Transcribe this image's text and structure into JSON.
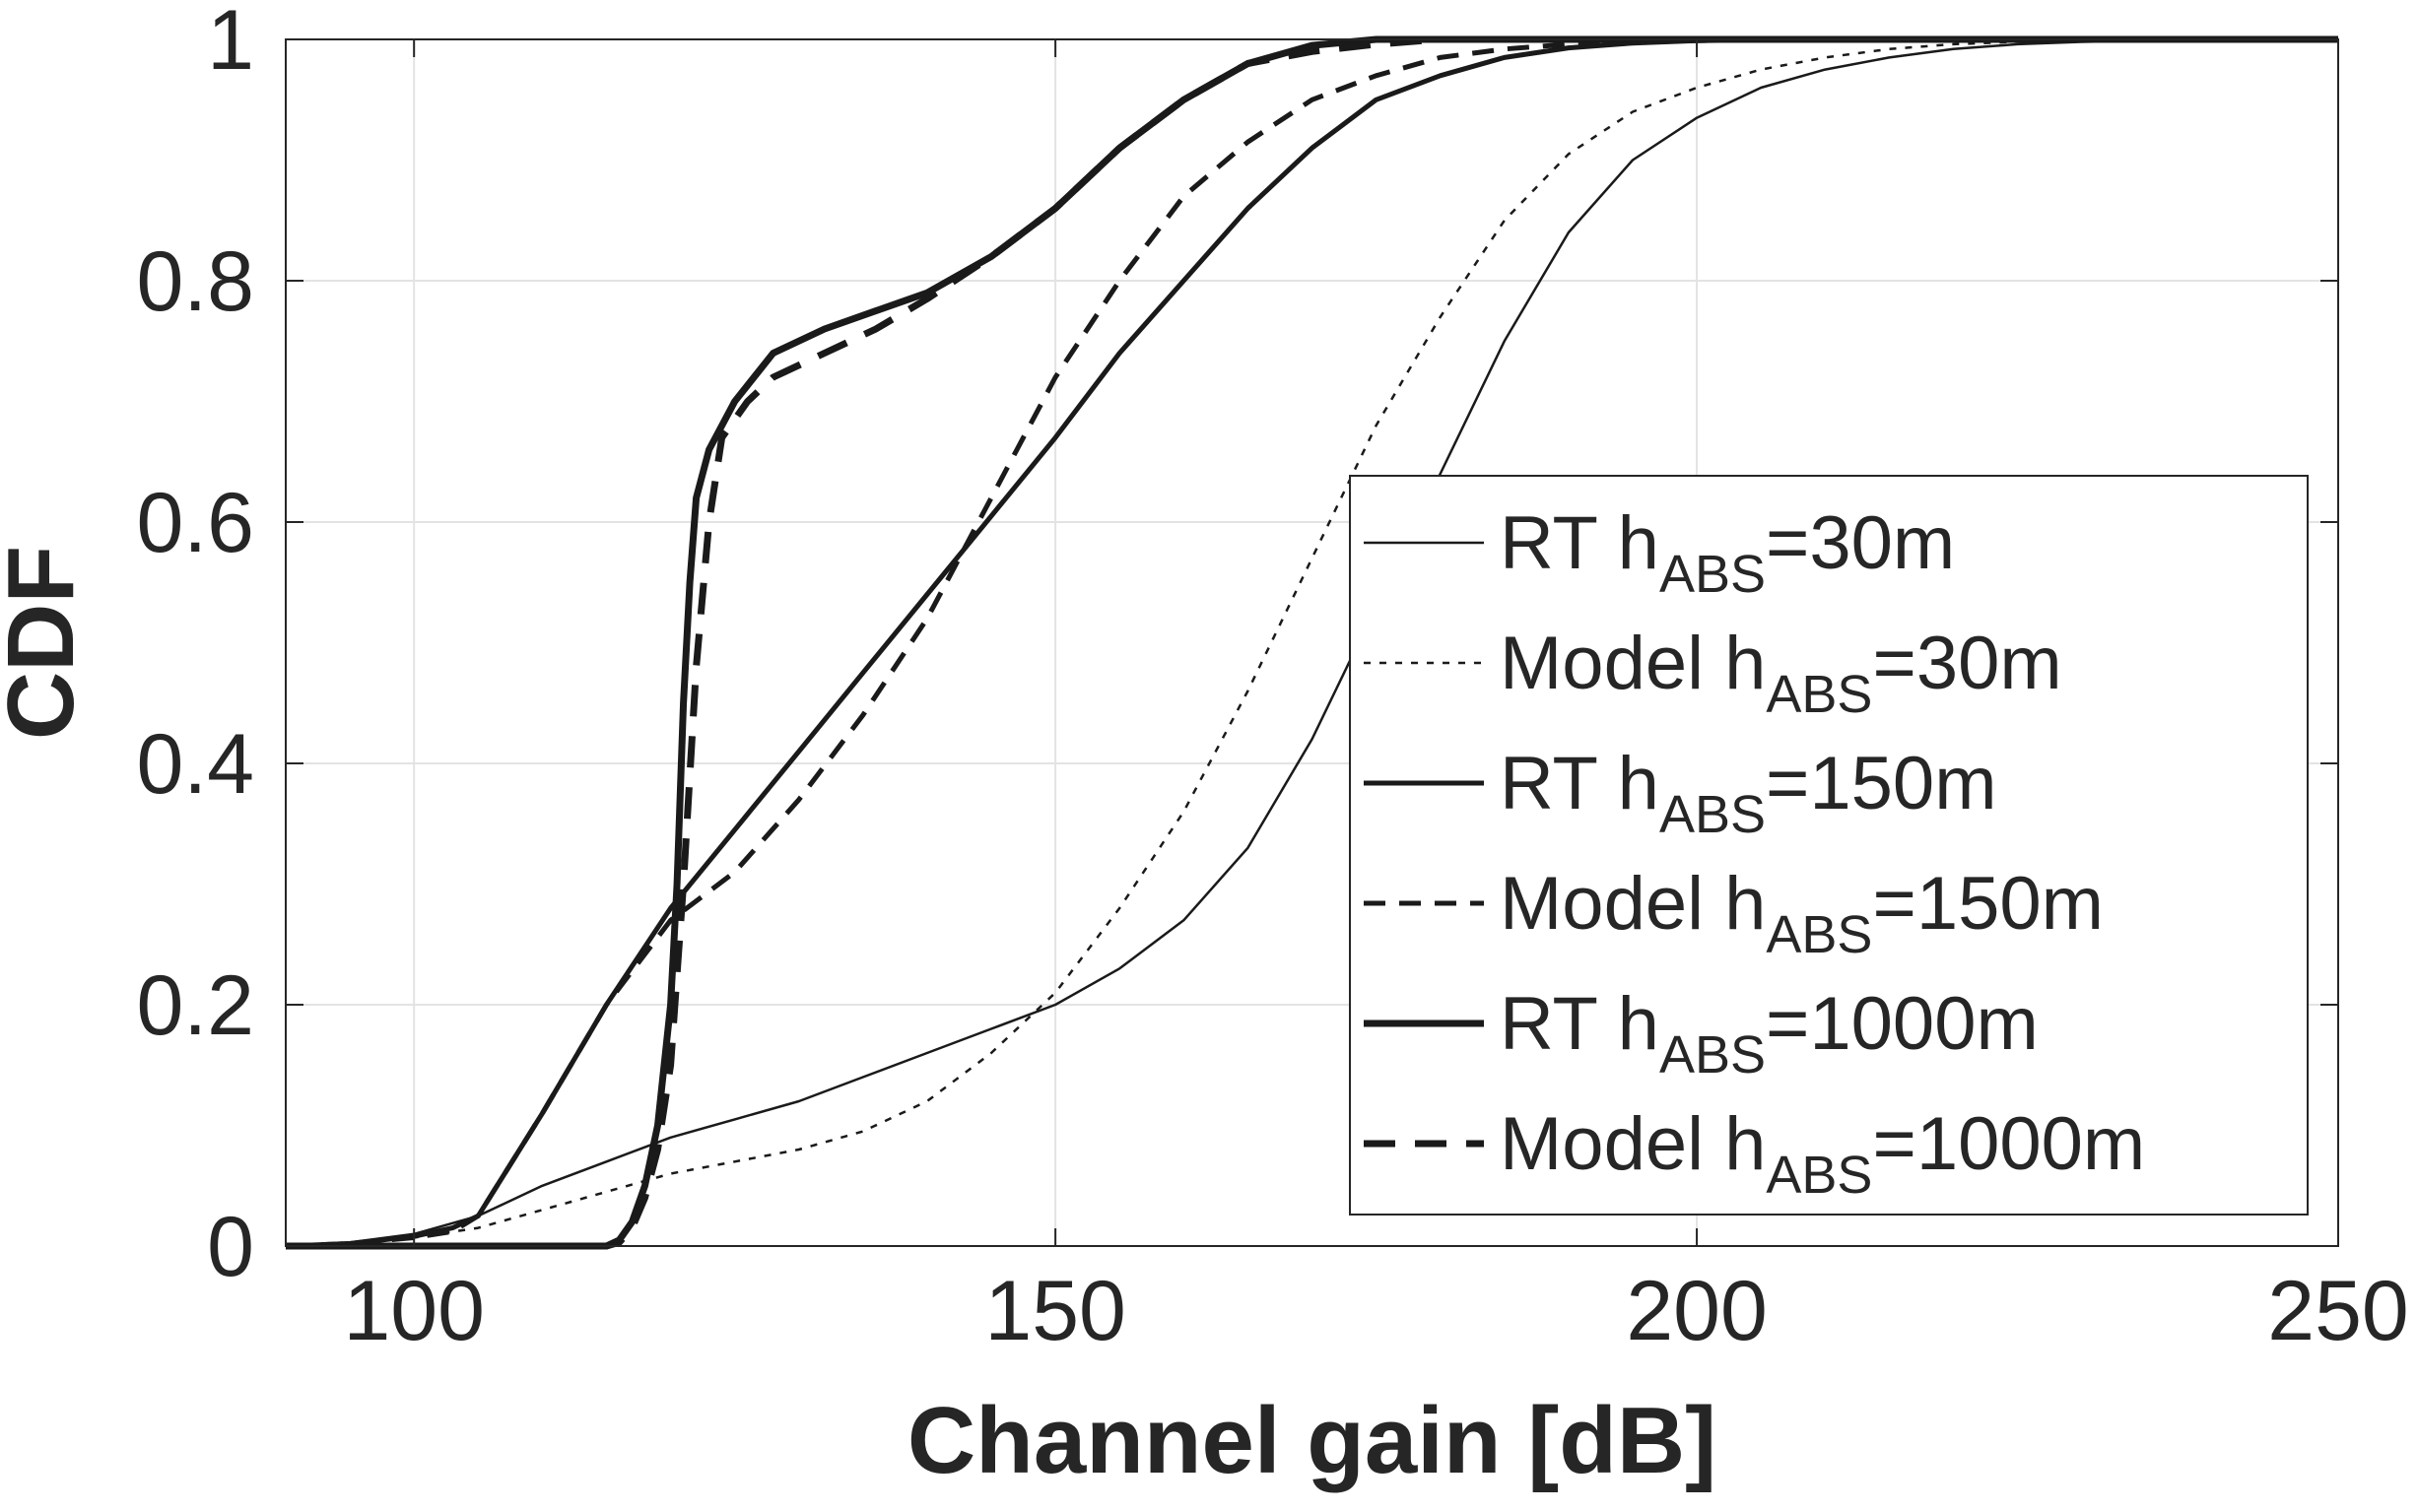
{
  "chart_data": {
    "type": "line",
    "title": "",
    "xlabel": "Channel gain [dB]",
    "ylabel": "CDF",
    "xlim": [
      90,
      250
    ],
    "ylim": [
      0,
      1
    ],
    "xticks": [
      100,
      150,
      200,
      250
    ],
    "yticks": [
      0,
      0.2,
      0.4,
      0.6,
      0.8,
      1
    ],
    "ytick_labels": [
      "0",
      "0.2",
      "0.4",
      "0.6",
      "0.8",
      "1"
    ],
    "grid": true,
    "legend_position": "bottom-right",
    "series": [
      {
        "name": "RT  h_ABS=30m",
        "legend": {
          "prefix": "RT  h",
          "sub": "ABS",
          "suffix": "=30m"
        },
        "style": "solid",
        "weight": "thin",
        "points": [
          [
            90,
            0
          ],
          [
            95,
            0.003
          ],
          [
            100,
            0.01
          ],
          [
            105,
            0.025
          ],
          [
            110,
            0.05
          ],
          [
            115,
            0.07
          ],
          [
            120,
            0.09
          ],
          [
            125,
            0.105
          ],
          [
            130,
            0.12
          ],
          [
            135,
            0.14
          ],
          [
            140,
            0.16
          ],
          [
            145,
            0.18
          ],
          [
            150,
            0.2
          ],
          [
            155,
            0.23
          ],
          [
            160,
            0.27
          ],
          [
            165,
            0.33
          ],
          [
            170,
            0.42
          ],
          [
            175,
            0.53
          ],
          [
            180,
            0.64
          ],
          [
            185,
            0.75
          ],
          [
            190,
            0.84
          ],
          [
            195,
            0.9
          ],
          [
            200,
            0.935
          ],
          [
            205,
            0.96
          ],
          [
            210,
            0.975
          ],
          [
            215,
            0.985
          ],
          [
            220,
            0.992
          ],
          [
            225,
            0.996
          ],
          [
            230,
            0.998
          ],
          [
            240,
            1
          ],
          [
            250,
            1
          ]
        ]
      },
      {
        "name": "Model  h_ABS=30m",
        "legend": {
          "prefix": "Model  h",
          "sub": "ABS",
          "suffix": "=30m"
        },
        "style": "dotted",
        "weight": "thin",
        "points": [
          [
            90,
            0
          ],
          [
            95,
            0.002
          ],
          [
            100,
            0.007
          ],
          [
            105,
            0.015
          ],
          [
            110,
            0.03
          ],
          [
            115,
            0.045
          ],
          [
            120,
            0.06
          ],
          [
            125,
            0.07
          ],
          [
            130,
            0.08
          ],
          [
            135,
            0.095
          ],
          [
            140,
            0.12
          ],
          [
            145,
            0.16
          ],
          [
            150,
            0.21
          ],
          [
            155,
            0.28
          ],
          [
            160,
            0.36
          ],
          [
            165,
            0.46
          ],
          [
            170,
            0.57
          ],
          [
            175,
            0.68
          ],
          [
            180,
            0.77
          ],
          [
            185,
            0.85
          ],
          [
            190,
            0.905
          ],
          [
            195,
            0.94
          ],
          [
            200,
            0.96
          ],
          [
            205,
            0.975
          ],
          [
            210,
            0.985
          ],
          [
            215,
            0.992
          ],
          [
            220,
            0.996
          ],
          [
            230,
            1
          ],
          [
            250,
            1
          ]
        ]
      },
      {
        "name": "RT  h_ABS=150m",
        "legend": {
          "prefix": "RT  h",
          "sub": "ABS",
          "suffix": "=150m"
        },
        "style": "solid",
        "weight": "medium",
        "points": [
          [
            90,
            0
          ],
          [
            95,
            0.002
          ],
          [
            100,
            0.008
          ],
          [
            103,
            0.015
          ],
          [
            105,
            0.025
          ],
          [
            110,
            0.11
          ],
          [
            115,
            0.2
          ],
          [
            120,
            0.28
          ],
          [
            125,
            0.345
          ],
          [
            130,
            0.41
          ],
          [
            135,
            0.475
          ],
          [
            140,
            0.54
          ],
          [
            145,
            0.605
          ],
          [
            150,
            0.67
          ],
          [
            155,
            0.74
          ],
          [
            160,
            0.8
          ],
          [
            165,
            0.86
          ],
          [
            170,
            0.91
          ],
          [
            175,
            0.95
          ],
          [
            180,
            0.97
          ],
          [
            185,
            0.985
          ],
          [
            190,
            0.993
          ],
          [
            195,
            0.997
          ],
          [
            200,
            0.999
          ],
          [
            210,
            1
          ],
          [
            250,
            1
          ]
        ]
      },
      {
        "name": "Model  h_ABS=150m",
        "legend": {
          "prefix": "Model  h",
          "sub": "ABS",
          "suffix": "=150m"
        },
        "style": "dashed",
        "weight": "medium",
        "points": [
          [
            90,
            0
          ],
          [
            95,
            0.002
          ],
          [
            100,
            0.007
          ],
          [
            103,
            0.012
          ],
          [
            105,
            0.025
          ],
          [
            110,
            0.11
          ],
          [
            115,
            0.2
          ],
          [
            120,
            0.27
          ],
          [
            125,
            0.31
          ],
          [
            130,
            0.37
          ],
          [
            135,
            0.44
          ],
          [
            140,
            0.52
          ],
          [
            145,
            0.62
          ],
          [
            150,
            0.72
          ],
          [
            155,
            0.8
          ],
          [
            160,
            0.87
          ],
          [
            165,
            0.915
          ],
          [
            170,
            0.95
          ],
          [
            175,
            0.97
          ],
          [
            180,
            0.985
          ],
          [
            185,
            0.992
          ],
          [
            190,
            0.996
          ],
          [
            200,
            0.999
          ],
          [
            210,
            1
          ],
          [
            250,
            1
          ]
        ]
      },
      {
        "name": "RT  h_ABS=1000m",
        "legend": {
          "prefix": "RT  h",
          "sub": "ABS",
          "suffix": "=1000m"
        },
        "style": "solid",
        "weight": "thick",
        "points": [
          [
            90,
            0
          ],
          [
            105,
            0
          ],
          [
            115,
            0
          ],
          [
            116,
            0.005
          ],
          [
            117,
            0.02
          ],
          [
            118,
            0.05
          ],
          [
            119,
            0.1
          ],
          [
            120,
            0.2
          ],
          [
            120.5,
            0.3
          ],
          [
            121,
            0.45
          ],
          [
            121.5,
            0.55
          ],
          [
            122,
            0.62
          ],
          [
            123,
            0.66
          ],
          [
            125,
            0.7
          ],
          [
            128,
            0.74
          ],
          [
            132,
            0.76
          ],
          [
            136,
            0.775
          ],
          [
            140,
            0.79
          ],
          [
            145,
            0.82
          ],
          [
            150,
            0.86
          ],
          [
            155,
            0.91
          ],
          [
            160,
            0.95
          ],
          [
            165,
            0.98
          ],
          [
            170,
            0.995
          ],
          [
            175,
            1
          ],
          [
            250,
            1
          ]
        ]
      },
      {
        "name": "Model  h_ABS=1000m",
        "legend": {
          "prefix": "Model  h",
          "sub": "ABS",
          "suffix": "=1000m"
        },
        "style": "dashed",
        "weight": "thick",
        "points": [
          [
            90,
            0
          ],
          [
            105,
            0
          ],
          [
            115,
            0
          ],
          [
            116,
            0.003
          ],
          [
            117,
            0.015
          ],
          [
            118,
            0.04
          ],
          [
            119,
            0.08
          ],
          [
            120,
            0.15
          ],
          [
            121,
            0.3
          ],
          [
            122,
            0.48
          ],
          [
            123,
            0.6
          ],
          [
            124,
            0.67
          ],
          [
            126,
            0.7
          ],
          [
            128,
            0.72
          ],
          [
            132,
            0.74
          ],
          [
            136,
            0.76
          ],
          [
            140,
            0.785
          ],
          [
            145,
            0.82
          ],
          [
            150,
            0.86
          ],
          [
            155,
            0.91
          ],
          [
            160,
            0.95
          ],
          [
            165,
            0.98
          ],
          [
            170,
            0.99
          ],
          [
            175,
            0.996
          ],
          [
            180,
            1
          ],
          [
            250,
            1
          ]
        ]
      }
    ]
  }
}
